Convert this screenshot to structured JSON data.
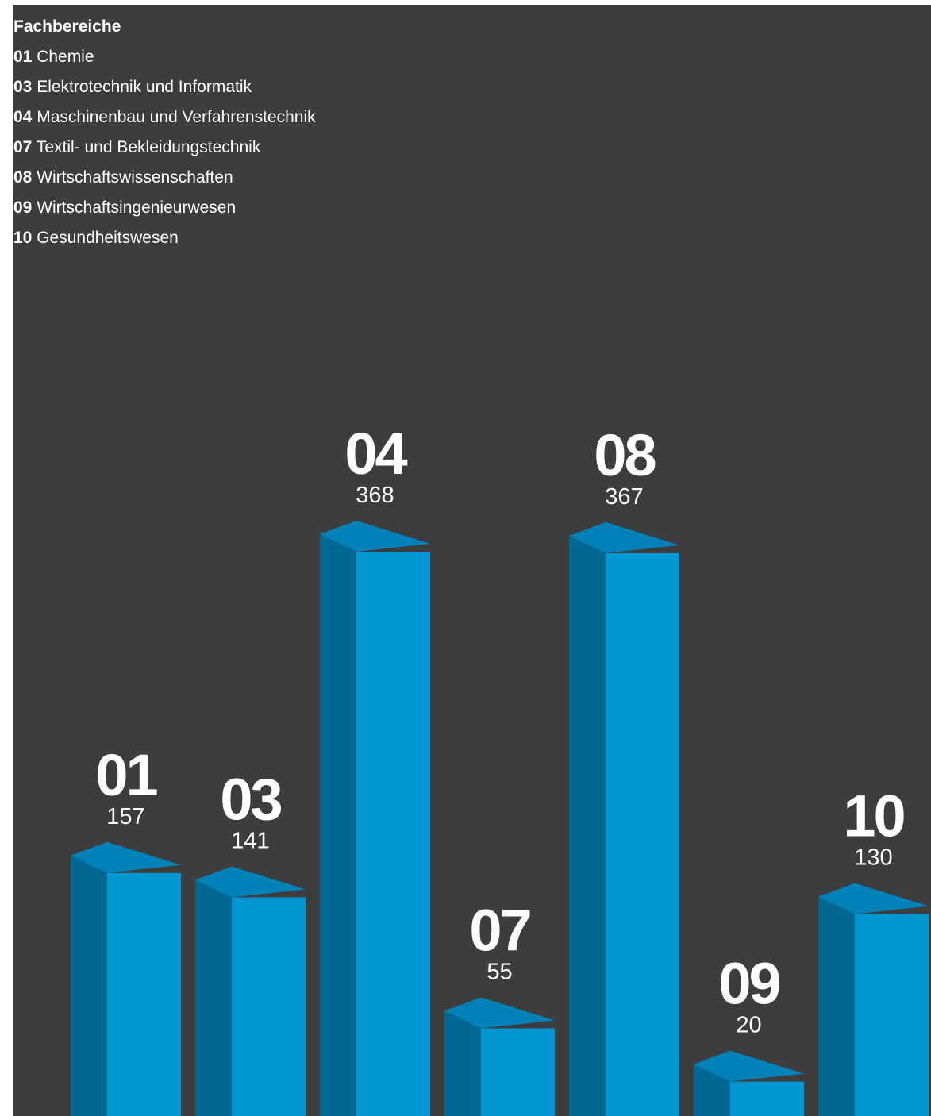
{
  "legend": {
    "title": "Fachbereiche",
    "items": [
      {
        "code": "01",
        "label": "Chemie"
      },
      {
        "code": "03",
        "label": "Elektrotechnik und Informatik"
      },
      {
        "code": "04",
        "label": "Maschinenbau und Verfahrenstechnik"
      },
      {
        "code": "07",
        "label": "Textil- und Bekleidungstechnik"
      },
      {
        "code": "08",
        "label": "Wirtschaftswissenschaften"
      },
      {
        "code": "09",
        "label": "Wirtschaftsingenieurwesen"
      },
      {
        "code": "10",
        "label": "Gesundheitswesen"
      }
    ]
  },
  "colors": {
    "background": "#3d3d3d",
    "bar_front": "#0096d4",
    "bar_side": "#006892",
    "bar_top": "#0082b8",
    "text": "#ffffff"
  },
  "chart_data": {
    "type": "bar",
    "categories": [
      "01",
      "03",
      "04",
      "07",
      "08",
      "09",
      "10"
    ],
    "values": [
      157,
      141,
      368,
      55,
      367,
      20,
      130
    ],
    "title": "",
    "xlabel": "",
    "ylabel": "",
    "style": "3d-columns",
    "grid": false,
    "legend": "top-left"
  }
}
